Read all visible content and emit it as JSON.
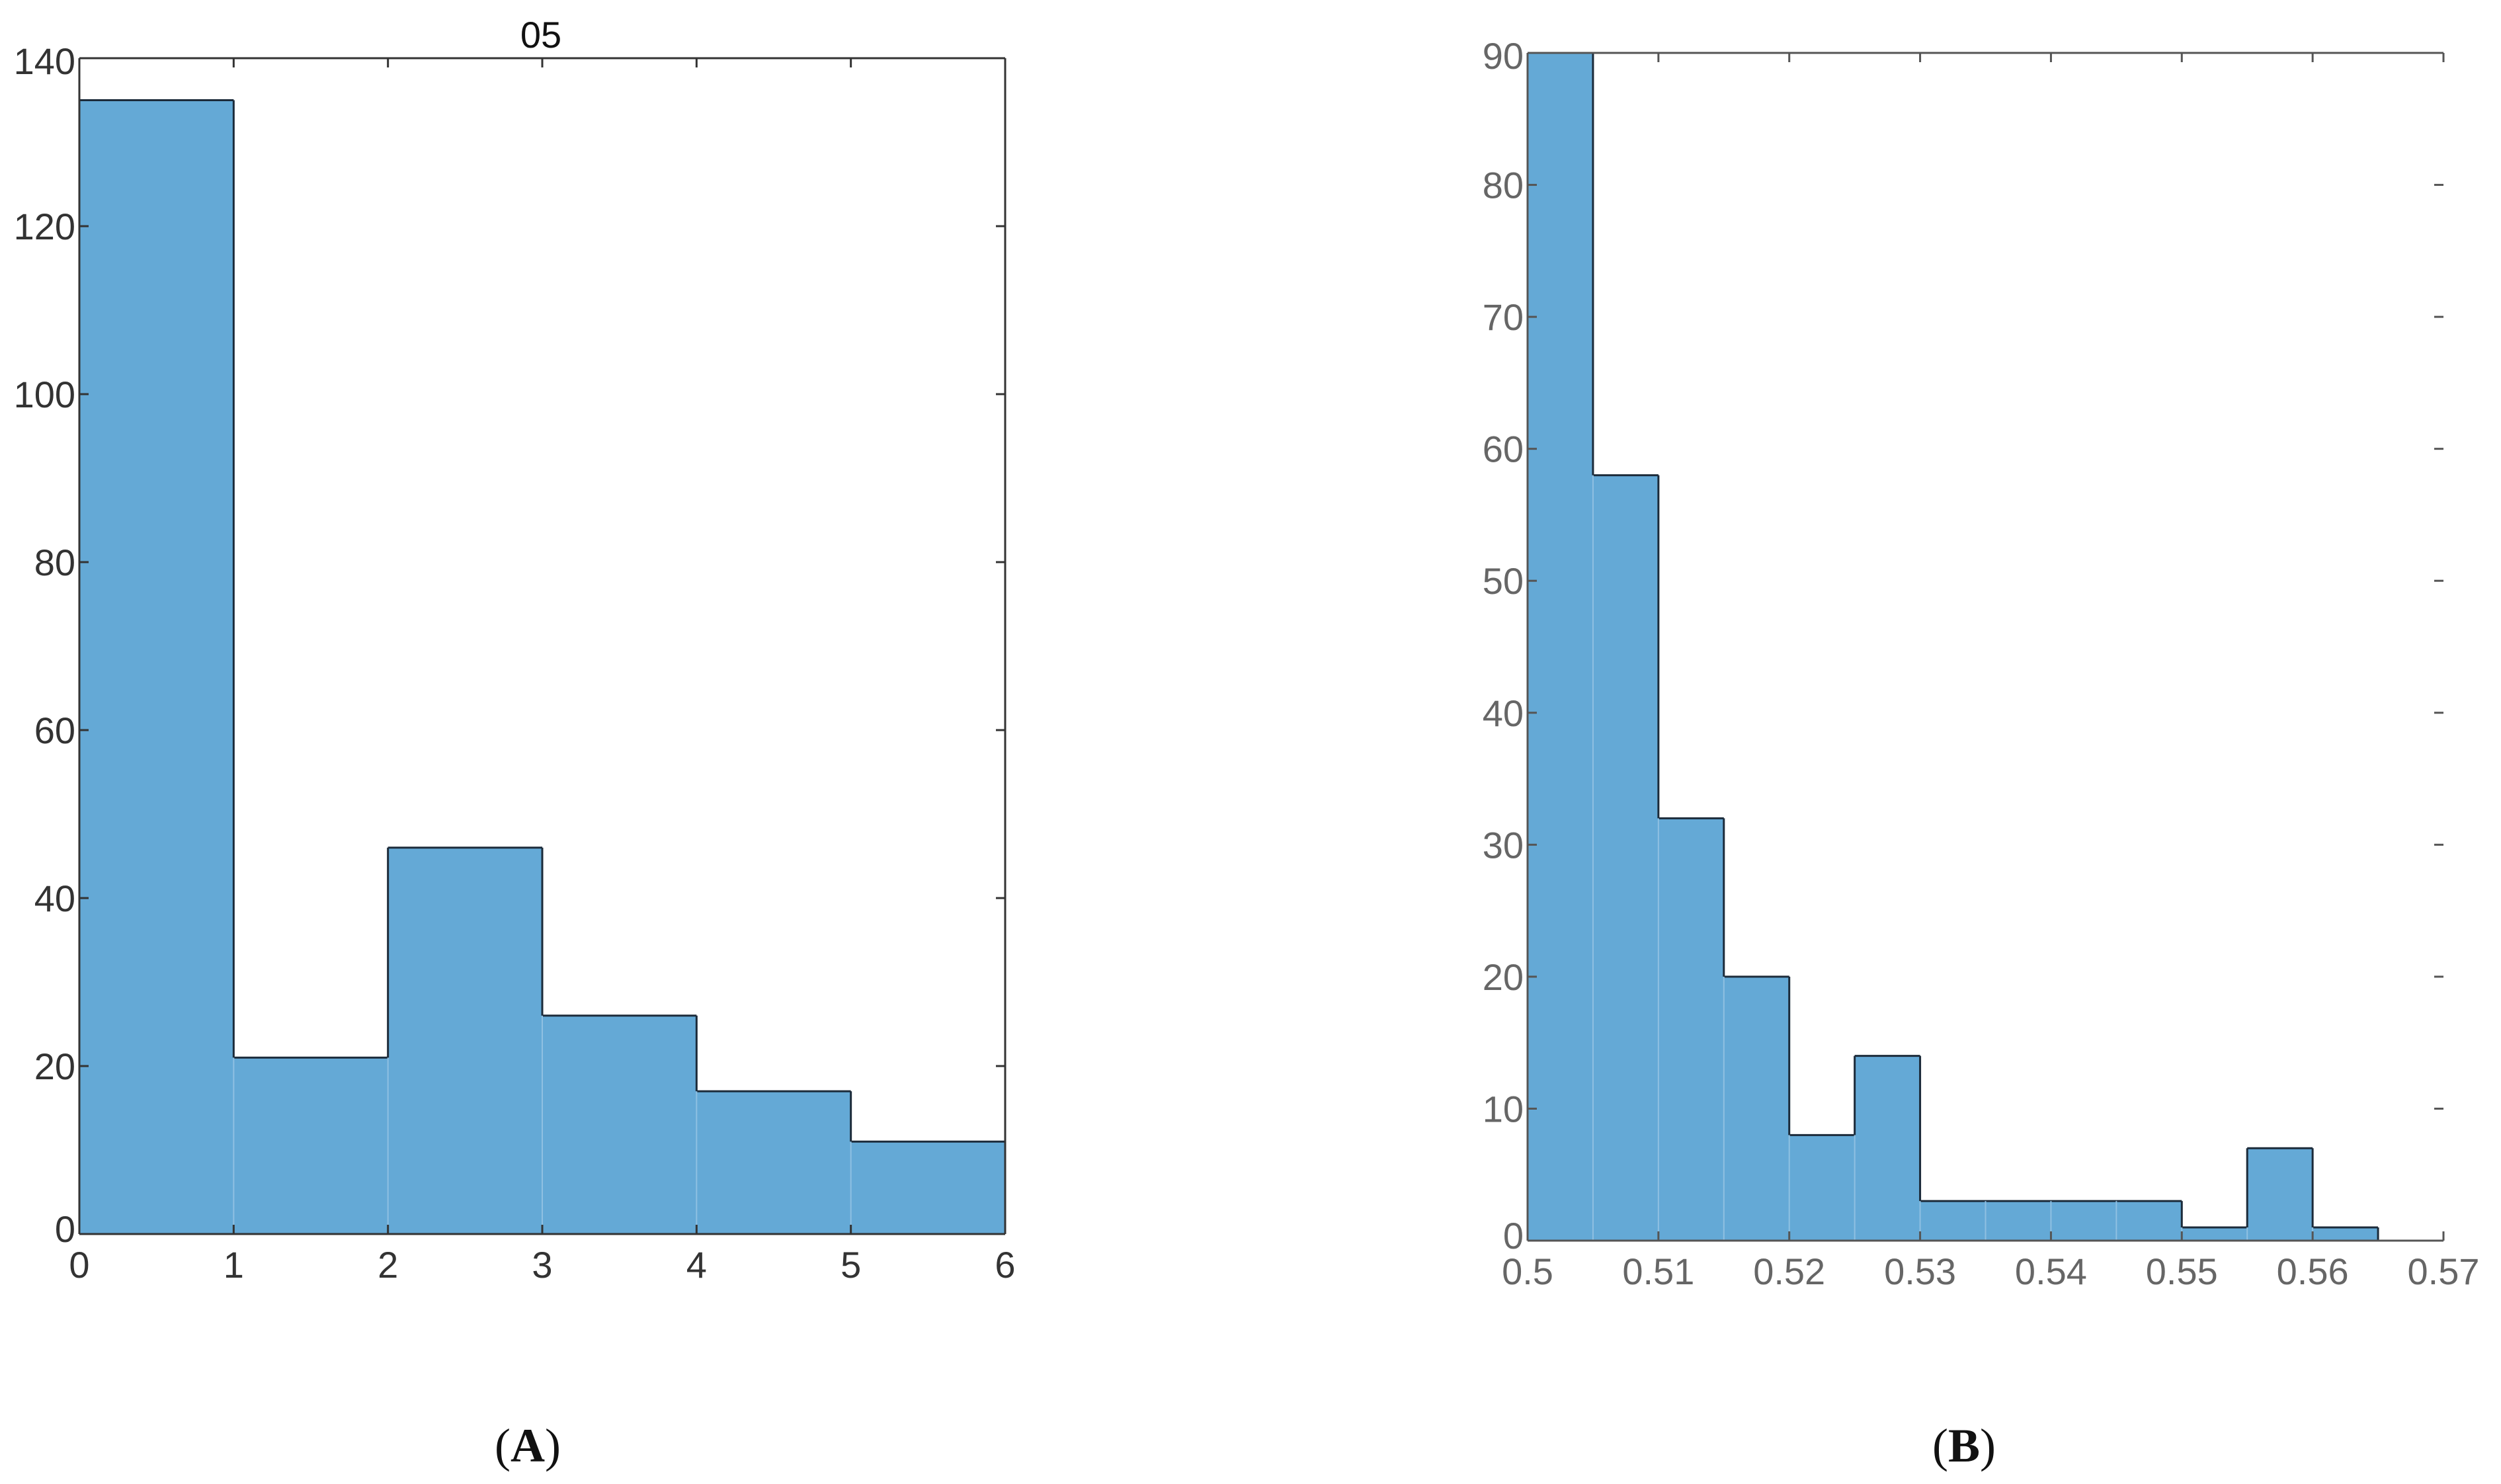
{
  "colors": {
    "bar_fill": "#64a9d6",
    "bar_edge": "#1c2b3a",
    "bar_divider": "#8fc0e2",
    "axis_A": "#333333",
    "axis_B": "#555555",
    "tick_text_A": "#333333",
    "tick_text_B": "#666666"
  },
  "chart_data": [
    {
      "panel": "A",
      "type": "bar",
      "title": "05",
      "panel_label": "A",
      "xlabel": "",
      "ylabel": "",
      "bin_edges": [
        0,
        1,
        2,
        3,
        4,
        5,
        6
      ],
      "values": [
        135,
        21,
        46,
        26,
        17,
        11
      ],
      "xlim": [
        0,
        6
      ],
      "ylim": [
        0,
        140
      ],
      "x_ticks": [
        "0",
        "1",
        "2",
        "3",
        "4",
        "5",
        "6"
      ],
      "y_ticks": [
        "0",
        "20",
        "40",
        "60",
        "80",
        "100",
        "120",
        "140"
      ],
      "grid": false
    },
    {
      "panel": "B",
      "type": "bar",
      "title": "",
      "panel_label": "B",
      "xlabel": "",
      "ylabel": "",
      "bin_edges": [
        0.5,
        0.505,
        0.51,
        0.515,
        0.52,
        0.525,
        0.53,
        0.535,
        0.54,
        0.545,
        0.55,
        0.555,
        0.56,
        0.565
      ],
      "values": [
        90,
        58,
        32,
        20,
        8,
        14,
        3,
        3,
        3,
        3,
        1,
        7,
        1
      ],
      "xlim": [
        0.5,
        0.57
      ],
      "ylim": [
        0,
        90
      ],
      "x_ticks": [
        "0.5",
        "0.51",
        "0.52",
        "0.53",
        "0.54",
        "0.55",
        "0.56",
        "0.57"
      ],
      "y_ticks": [
        "0",
        "10",
        "20",
        "30",
        "40",
        "50",
        "60",
        "70",
        "80",
        "90"
      ],
      "grid": false
    }
  ]
}
